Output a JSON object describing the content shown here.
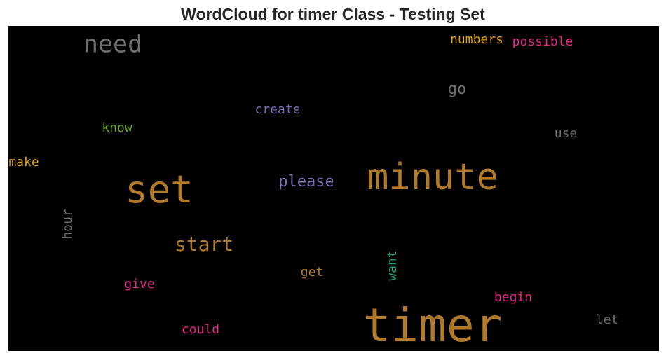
{
  "chart_data": {
    "type": "wordcloud",
    "title": "WordCloud for timer Class - Testing Set",
    "words": [
      {
        "text": "timer",
        "color": "#b07a2a",
        "vertical": false
      },
      {
        "text": "minute",
        "color": "#b07a2a",
        "vertical": false
      },
      {
        "text": "set",
        "color": "#b07a2a",
        "vertical": false
      },
      {
        "text": "need",
        "color": "#6e6e6e",
        "vertical": false
      },
      {
        "text": "start",
        "color": "#b07a2a",
        "vertical": false
      },
      {
        "text": "please",
        "color": "#7570b3",
        "vertical": false
      },
      {
        "text": "go",
        "color": "#6e6e6e",
        "vertical": false
      },
      {
        "text": "numbers",
        "color": "#d9a01c",
        "vertical": false
      },
      {
        "text": "possible",
        "color": "#e7298a",
        "vertical": false
      },
      {
        "text": "create",
        "color": "#7570b3",
        "vertical": false
      },
      {
        "text": "know",
        "color": "#66a61e",
        "vertical": false
      },
      {
        "text": "use",
        "color": "#6e6e6e",
        "vertical": false
      },
      {
        "text": "make",
        "color": "#d9a01c",
        "vertical": false
      },
      {
        "text": "hour",
        "color": "#6e6e6e",
        "vertical": true
      },
      {
        "text": "want",
        "color": "#1b9e77",
        "vertical": true
      },
      {
        "text": "get",
        "color": "#b07a2a",
        "vertical": false
      },
      {
        "text": "give",
        "color": "#e7298a",
        "vertical": false
      },
      {
        "text": "begin",
        "color": "#e7298a",
        "vertical": false
      },
      {
        "text": "could",
        "color": "#e7298a",
        "vertical": false
      },
      {
        "text": "let",
        "color": "#6e6e6e",
        "vertical": false
      }
    ]
  }
}
